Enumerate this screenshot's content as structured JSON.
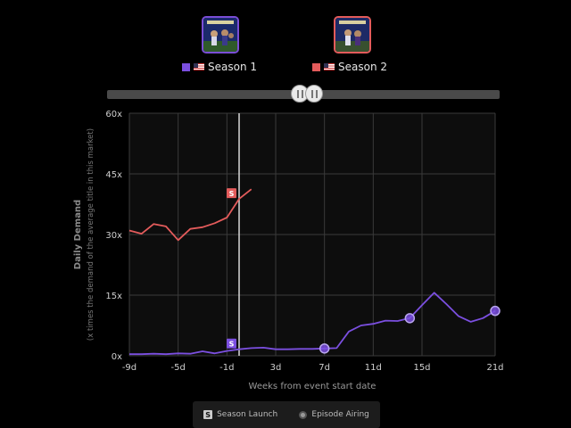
{
  "legend": {
    "series1_label": "Season 1",
    "series2_label": "Season 2",
    "series1_color": "#7b4fe0",
    "series2_color": "#e35b5b"
  },
  "bottom_legend": {
    "season_launch_label": "Season Launch",
    "season_launch_glyph": "S",
    "episode_airing_label": "Episode Airing"
  },
  "chart_data": {
    "type": "line",
    "xlabel": "Weeks from event start date",
    "ylabel": "Daily Demand",
    "ylabel_sub": "(x times the demand of the average title in this market)",
    "x_ticks": [
      "-9d",
      "-5d",
      "-1d",
      "3d",
      "7d",
      "11d",
      "15d",
      "21d"
    ],
    "x_tick_values": [
      -9,
      -5,
      -1,
      3,
      7,
      11,
      15,
      21
    ],
    "y_ticks": [
      "0x",
      "15x",
      "30x",
      "45x",
      "60x"
    ],
    "xlim": [
      -9,
      21
    ],
    "ylim": [
      0,
      60
    ],
    "grid": true,
    "current_marker_x": 0,
    "series": [
      {
        "name": "Season 1",
        "color": "#7b4fe0",
        "points": [
          [
            -9,
            0.4
          ],
          [
            -8,
            0.4
          ],
          [
            -7,
            0.5
          ],
          [
            -6,
            0.4
          ],
          [
            -5,
            0.6
          ],
          [
            -4,
            0.5
          ],
          [
            -3,
            1.1
          ],
          [
            -2,
            0.6
          ],
          [
            -1,
            1.2
          ],
          [
            0,
            1.6
          ],
          [
            1,
            1.9
          ],
          [
            2,
            2.0
          ],
          [
            3,
            1.6
          ],
          [
            4,
            1.6
          ],
          [
            5,
            1.7
          ],
          [
            6,
            1.7
          ],
          [
            7,
            1.8
          ],
          [
            8,
            1.9
          ],
          [
            9,
            6.0
          ],
          [
            10,
            7.5
          ],
          [
            11,
            7.9
          ],
          [
            12,
            8.7
          ],
          [
            13,
            8.6
          ],
          [
            14,
            9.3
          ],
          [
            15,
            12.5
          ],
          [
            16,
            15.6
          ],
          [
            17,
            12.8
          ],
          [
            18,
            9.8
          ],
          [
            19,
            8.4
          ],
          [
            20,
            9.3
          ],
          [
            21,
            11.1
          ]
        ],
        "episode_markers": [
          7,
          14,
          21
        ],
        "launch_marker": 0
      },
      {
        "name": "Season 2",
        "color": "#e35b5b",
        "points": [
          [
            -9,
            31.0
          ],
          [
            -8,
            30.2
          ],
          [
            -7,
            32.6
          ],
          [
            -6,
            32.0
          ],
          [
            -5,
            28.6
          ],
          [
            -4,
            31.4
          ],
          [
            -3,
            31.8
          ],
          [
            -2,
            32.8
          ],
          [
            -1,
            34.2
          ],
          [
            0,
            38.8
          ],
          [
            1,
            41.2
          ]
        ],
        "launch_marker": 0
      }
    ]
  }
}
